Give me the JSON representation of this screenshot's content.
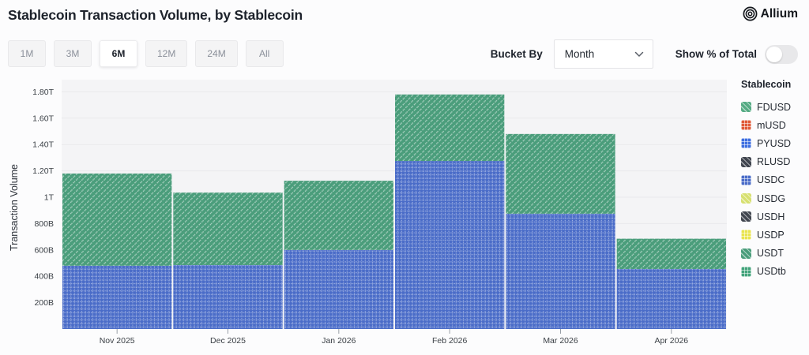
{
  "header": {
    "title": "Stablecoin Transaction Volume, by Stablecoin",
    "brand": "Allium"
  },
  "toolbar": {
    "ranges": [
      {
        "label": "1M",
        "selected": false
      },
      {
        "label": "3M",
        "selected": false
      },
      {
        "label": "6M",
        "selected": true
      },
      {
        "label": "12M",
        "selected": false
      },
      {
        "label": "24M",
        "selected": false
      },
      {
        "label": "All",
        "selected": false
      }
    ],
    "bucket_by_label": "Bucket By",
    "bucket_value": "Month",
    "show_pct_label": "Show % of Total",
    "show_pct_on": false
  },
  "legend": {
    "title": "Stablecoin",
    "items": [
      {
        "label": "FDUSD",
        "color": "#55ab84",
        "pattern": "diagonal"
      },
      {
        "label": "mUSD",
        "color": "#e05a38",
        "pattern": "dots"
      },
      {
        "label": "PYUSD",
        "color": "#3d6ee0",
        "pattern": "dots"
      },
      {
        "label": "RLUSD",
        "color": "#3f444e",
        "pattern": "diagonal"
      },
      {
        "label": "USDC",
        "color": "#4a6cc8",
        "pattern": "dots"
      },
      {
        "label": "USDG",
        "color": "#d7e070",
        "pattern": "diagonal"
      },
      {
        "label": "USDH",
        "color": "#41464f",
        "pattern": "diagonal"
      },
      {
        "label": "USDP",
        "color": "#e9e44e",
        "pattern": "dots"
      },
      {
        "label": "USDT",
        "color": "#4a9d7b",
        "pattern": "diagonal"
      },
      {
        "label": "USDtb",
        "color": "#42a37b",
        "pattern": "dots"
      }
    ]
  },
  "chart_data": {
    "type": "bar",
    "stacked": true,
    "title": "Stablecoin Transaction Volume, by Stablecoin",
    "ylabel": "Transaction Volume",
    "xlabel": "",
    "unit": "billions USD",
    "categories": [
      "Nov 2025",
      "Dec 2025",
      "Jan 2026",
      "Feb 2026",
      "Mar 2026",
      "Apr 2026"
    ],
    "series": [
      {
        "name": "USDC",
        "color": "#4a6cc8",
        "pattern": "dots",
        "values": [
          480,
          485,
          600,
          1275,
          875,
          455
        ]
      },
      {
        "name": "USDT",
        "color": "#4a9d7b",
        "pattern": "diagonal",
        "values": [
          700,
          550,
          525,
          505,
          605,
          230
        ]
      }
    ],
    "totals": [
      1180,
      1035,
      1125,
      1780,
      1480,
      685
    ],
    "yticks": [
      {
        "value": 200,
        "label": "200B"
      },
      {
        "value": 400,
        "label": "400B"
      },
      {
        "value": 600,
        "label": "600B"
      },
      {
        "value": 800,
        "label": "800B"
      },
      {
        "value": 1000,
        "label": "1T"
      },
      {
        "value": 1200,
        "label": "1.20T"
      },
      {
        "value": 1400,
        "label": "1.40T"
      },
      {
        "value": 1600,
        "label": "1.60T"
      },
      {
        "value": 1800,
        "label": "1.80T"
      }
    ],
    "ylim": [
      0,
      1900
    ],
    "grid": true,
    "legend_position": "right",
    "plot_bg": "#f4f4f6",
    "grid_color": "#e9e9ec"
  }
}
